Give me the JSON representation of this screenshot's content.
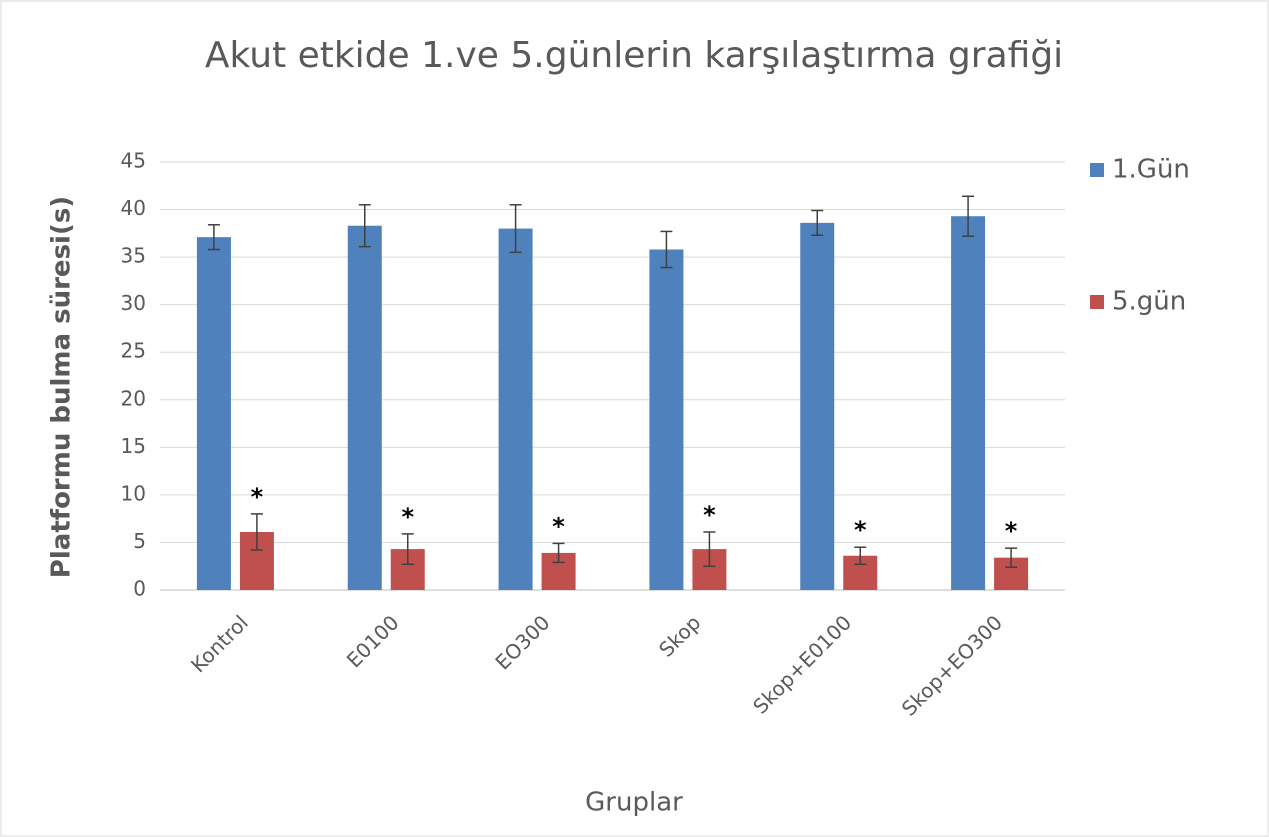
{
  "chart_data": {
    "type": "bar",
    "title": "Akut etkide 1.ve 5.günlerin karşılaştırma grafiği",
    "x_label": "Gruplar",
    "y_label": "Platformu bulma süresi(s)",
    "categories": [
      "Kontrol",
      "E0100",
      "EO300",
      "Skop",
      "Skop+E0100",
      "Skop+EO300"
    ],
    "series": [
      {
        "name": "1.Gün",
        "color": "#4f81bd",
        "values": [
          37.1,
          38.3,
          38.0,
          35.8,
          38.6,
          39.3
        ],
        "errors": [
          1.3,
          2.2,
          2.5,
          1.9,
          1.3,
          2.1
        ]
      },
      {
        "name": "5.gün",
        "color": "#c0504d",
        "values": [
          6.1,
          4.3,
          3.9,
          4.3,
          3.6,
          3.4
        ],
        "errors": [
          1.9,
          1.6,
          1.0,
          1.8,
          0.9,
          1.0
        ],
        "markers": [
          "*",
          "*",
          "*",
          "*",
          "*",
          "*"
        ]
      }
    ],
    "ylim": [
      0,
      45
    ],
    "yticks": [
      0,
      5,
      10,
      15,
      20,
      25,
      30,
      35,
      40,
      45
    ],
    "grid": true,
    "legend": "right"
  }
}
